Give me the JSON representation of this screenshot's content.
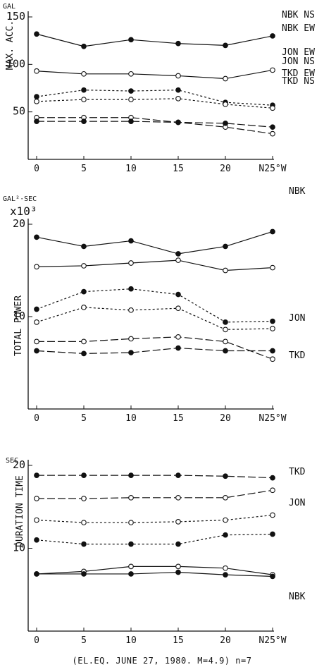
{
  "caption": "(EL.EQ. JUNE 27, 1980. M=4.9) n=7",
  "chart_data": [
    {
      "type": "line",
      "ylabel": "MAX. ACC.",
      "yunit": "GAL",
      "ylim": [
        0,
        150
      ],
      "yticks": [
        50,
        100,
        150
      ],
      "x": [
        0,
        5,
        10,
        15,
        20,
        25
      ],
      "xtick_labels": [
        "0",
        "5",
        "10",
        "15",
        "20",
        "N25°W"
      ],
      "series": [
        {
          "name": "NBK NS",
          "style": "solid",
          "marker": "filled",
          "values": [
            132,
            119,
            126,
            122,
            120,
            130
          ]
        },
        {
          "name": "NBK EW",
          "style": "solid",
          "marker": "open",
          "values": [
            93,
            90,
            90,
            88,
            85,
            94
          ]
        },
        {
          "name": "JON EW",
          "style": "dotted",
          "marker": "filled",
          "values": [
            66,
            73,
            72,
            73,
            60,
            57
          ]
        },
        {
          "name": "JON NS",
          "style": "dotted",
          "marker": "open",
          "values": [
            61,
            63,
            63,
            64,
            58,
            54
          ]
        },
        {
          "name": "TKD EW",
          "style": "dashed",
          "marker": "open",
          "values": [
            44,
            44,
            44,
            39,
            34,
            27
          ]
        },
        {
          "name": "TKD NS",
          "style": "dashed",
          "marker": "filled",
          "values": [
            40,
            40,
            40,
            39,
            38,
            34
          ]
        }
      ]
    },
    {
      "type": "line",
      "ylabel": "TOTAL POWER",
      "yunit": "GAL²·SEC",
      "yscale_label": "x10³",
      "ylim": [
        0,
        20
      ],
      "yticks": [
        10,
        20
      ],
      "x": [
        0,
        5,
        10,
        15,
        20,
        25
      ],
      "xtick_labels": [
        "0",
        "5",
        "10",
        "15",
        "20",
        "N25°W"
      ],
      "group_labels": [
        "NBK",
        "JON",
        "TKD"
      ],
      "series": [
        {
          "name": "NBK",
          "style": "solid",
          "marker": "filled",
          "values": [
            18.6,
            17.6,
            18.2,
            16.8,
            17.6,
            19.2
          ]
        },
        {
          "name": "NBK",
          "style": "solid",
          "marker": "open",
          "values": [
            15.4,
            15.5,
            15.8,
            16.1,
            15.0,
            15.3
          ]
        },
        {
          "name": "JON",
          "style": "dotted",
          "marker": "filled",
          "values": [
            10.8,
            12.7,
            13.0,
            12.4,
            9.4,
            9.5
          ]
        },
        {
          "name": "JON",
          "style": "dotted",
          "marker": "open",
          "values": [
            9.4,
            11.0,
            10.7,
            10.9,
            8.6,
            8.7
          ]
        },
        {
          "name": "TKD",
          "style": "dashed",
          "marker": "open",
          "values": [
            7.3,
            7.3,
            7.6,
            7.8,
            7.3,
            5.4
          ]
        },
        {
          "name": "TKD",
          "style": "dashed",
          "marker": "filled",
          "values": [
            6.3,
            6.0,
            6.1,
            6.6,
            6.3,
            6.3
          ]
        }
      ]
    },
    {
      "type": "line",
      "ylabel": "DURATION TIME",
      "yunit": "SEC",
      "ylim": [
        0,
        20
      ],
      "yticks": [
        10,
        20
      ],
      "x": [
        0,
        5,
        10,
        15,
        20,
        25
      ],
      "xtick_labels": [
        "0",
        "5",
        "10",
        "15",
        "20",
        "N25°W"
      ],
      "group_labels": [
        "TKD",
        "JON",
        "NBK"
      ],
      "series": [
        {
          "name": "TKD",
          "style": "dashed",
          "marker": "filled",
          "values": [
            18.8,
            18.8,
            18.8,
            18.8,
            18.7,
            18.5
          ]
        },
        {
          "name": "TKD",
          "style": "dashed",
          "marker": "open",
          "values": [
            16.0,
            16.0,
            16.1,
            16.1,
            16.1,
            17.0
          ]
        },
        {
          "name": "JON",
          "style": "dotted",
          "marker": "open",
          "values": [
            13.4,
            13.1,
            13.1,
            13.2,
            13.4,
            14.0
          ]
        },
        {
          "name": "JON",
          "style": "dotted",
          "marker": "filled",
          "values": [
            11.0,
            10.5,
            10.5,
            10.5,
            11.6,
            11.7
          ]
        },
        {
          "name": "NBK",
          "style": "solid",
          "marker": "open",
          "values": [
            6.9,
            7.2,
            7.8,
            7.8,
            7.6,
            6.8
          ]
        },
        {
          "name": "NBK",
          "style": "solid",
          "marker": "filled",
          "values": [
            6.9,
            6.9,
            6.9,
            7.1,
            6.8,
            6.6
          ]
        }
      ]
    }
  ]
}
